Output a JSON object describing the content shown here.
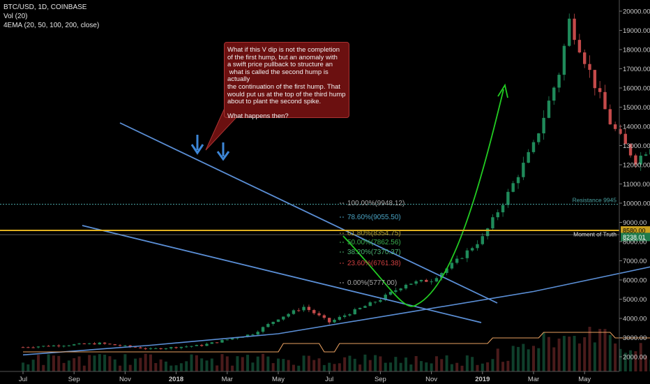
{
  "legend": {
    "symbol_line": "BTC/USD, 1D, COINBASE",
    "vol_line": "Vol (20)",
    "ema_line": "4EMA (20, 50, 100, 200, close)"
  },
  "annotation": {
    "text": "What if this V dip is not the completion\nof the first hump, but an anomaly with\na swift price pullback to structure an\n what is called the second hump is actually\nthe continuation of the first hump. That\nwould put us at the top of the third hump\nabout to plant the second spike.\n\nWhat happens then?"
  },
  "colors": {
    "background": "#000000",
    "up_candle": "#1f8a5a",
    "down_candle": "#c44a4a",
    "trendline": "#5b8fd6",
    "projection": "#22cc22",
    "moment_line": "#e0b020",
    "resistance_line": "#4aa3a3"
  },
  "chart_data": {
    "type": "candlestick",
    "symbol": "BTC/USD",
    "timeframe": "1D",
    "exchange": "COINBASE",
    "x_ticks": [
      "Jul",
      "Sep",
      "Nov",
      "2018",
      "Mar",
      "May",
      "Jul",
      "Sep",
      "Nov",
      "2019",
      "Mar",
      "May"
    ],
    "y_ticks": [
      "2000.00",
      "3000.00",
      "4000.00",
      "5000.00",
      "6000.00",
      "7000.00",
      "8000.00",
      "9000.00",
      "10000.00",
      "11000.00",
      "12000.00",
      "13000.00",
      "14000.00",
      "15000.00",
      "16000.00",
      "17000.00",
      "18000.00",
      "19000.00",
      "20000.00"
    ],
    "ylim": [
      1500,
      20300
    ],
    "price_path": [
      [
        0,
        2500
      ],
      [
        3,
        2700
      ],
      [
        5,
        2400
      ],
      [
        7,
        2600
      ],
      [
        9,
        3200
      ],
      [
        10,
        4000
      ],
      [
        11,
        4600
      ],
      [
        12,
        3800
      ],
      [
        13,
        4400
      ],
      [
        14,
        5000
      ],
      [
        15,
        5800
      ],
      [
        16,
        6000
      ],
      [
        17,
        7000
      ],
      [
        18,
        8200
      ],
      [
        19,
        10500
      ],
      [
        20,
        13000
      ],
      [
        21,
        16800
      ],
      [
        21.4,
        19500
      ],
      [
        22,
        17500
      ],
      [
        23,
        14200
      ],
      [
        24,
        12200
      ],
      [
        25,
        13500
      ],
      [
        26,
        11500
      ],
      [
        27,
        10200
      ],
      [
        28,
        8400
      ],
      [
        29,
        7000
      ],
      [
        29.5,
        9700
      ],
      [
        30,
        11000
      ],
      [
        31,
        10400
      ],
      [
        32,
        9200
      ],
      [
        33,
        8500
      ],
      [
        34,
        7700
      ],
      [
        35,
        6900
      ],
      [
        36,
        7100
      ],
      [
        37,
        6700
      ],
      [
        38,
        7300
      ],
      [
        39,
        8500
      ],
      [
        40,
        9200
      ],
      [
        40.5,
        9500
      ],
      [
        41,
        8800
      ],
      [
        42,
        8000
      ],
      [
        43,
        7500
      ],
      [
        44,
        7200
      ],
      [
        45,
        7400
      ],
      [
        46,
        6700
      ],
      [
        47,
        6500
      ],
      [
        48,
        6200
      ],
      [
        49,
        6400
      ],
      [
        50,
        6900
      ],
      [
        51,
        7400
      ],
      [
        52,
        8000
      ],
      [
        52.6,
        8238
      ]
    ],
    "ema_200": [
      [
        0,
        2100
      ],
      [
        5,
        2600
      ],
      [
        10,
        3200
      ],
      [
        15,
        4300
      ],
      [
        20,
        5400
      ],
      [
        25,
        6800
      ],
      [
        30,
        8000
      ],
      [
        35,
        8900
      ],
      [
        40,
        9700
      ],
      [
        43,
        10100
      ],
      [
        46,
        10300
      ],
      [
        48,
        10200
      ],
      [
        50,
        9600
      ],
      [
        52.6,
        8600
      ]
    ],
    "fibonacci_levels": [
      {
        "label": "100.00%(9948.12)",
        "value": 9948.12
      },
      {
        "label": "78.60%(9055.50)",
        "value": 9055.5
      },
      {
        "label": "61.80%(8354.75)",
        "value": 8354.75
      },
      {
        "label": "50.00%(7862.56)",
        "value": 7862.56
      },
      {
        "label": "38.20%(7370.37)",
        "value": 7370.37
      },
      {
        "label": "23.60%(6761.38)",
        "value": 6761.38
      },
      {
        "label": "0.00%(5777.00)",
        "value": 5777.0
      }
    ],
    "horizontal_lines": [
      {
        "name": "Resistance 9945",
        "value": 9945
      },
      {
        "name": "Moment of Truth",
        "value": 8580
      }
    ],
    "price_badges": [
      {
        "label": "8580.00",
        "value": 8580
      },
      {
        "label": "8238.01",
        "value": 8238.01
      }
    ],
    "trendlines": [
      {
        "name": "upper",
        "from": [
          2017.9,
          14300
        ],
        "to": [
          2019.2,
          4700
        ]
      },
      {
        "name": "lower",
        "from": [
          2017.6,
          8800
        ],
        "to": [
          2019.1,
          3700
        ]
      }
    ],
    "projection_path_label": "",
    "volume_visible": true
  }
}
